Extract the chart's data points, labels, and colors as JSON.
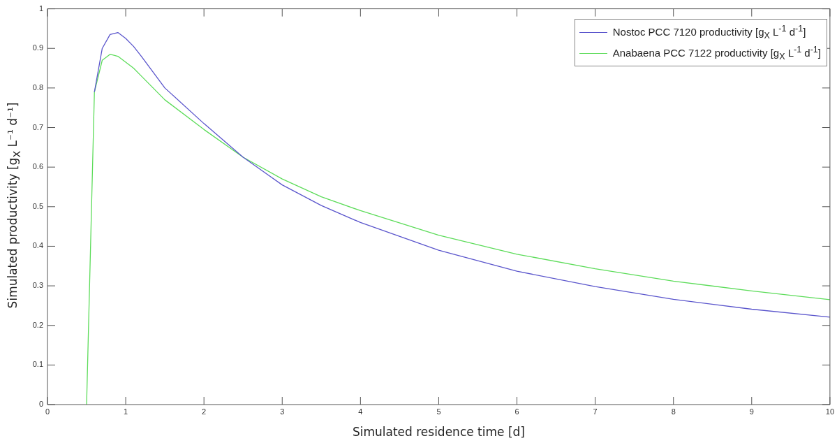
{
  "chart_data": {
    "type": "line",
    "xlabel": "Simulated residence time [d]",
    "ylabel": "Simulated productivity [g$_{X}$ L⁻¹ d⁻¹]",
    "xlim": [
      0,
      10
    ],
    "xticks": [
      0,
      1,
      2,
      3,
      4,
      5,
      6,
      7,
      8,
      9,
      10
    ],
    "ylim": [
      0,
      1
    ],
    "yticks": [
      0,
      0.1,
      0.2,
      0.3,
      0.4,
      0.5,
      0.6,
      0.7,
      0.8,
      0.9,
      1
    ],
    "grid": false,
    "legend": "top right",
    "marker": "none",
    "line_style": "solid",
    "series": [
      {
        "name": "Nostoc PCC 7120 productivity [g$_{X}$ L$^{-1}$ d$^{-1}$]",
        "color": "#5a55cc",
        "x": [
          0.6,
          0.7,
          0.8,
          0.9,
          1.0,
          1.1,
          1.2,
          1.5,
          2,
          2.5,
          3,
          3.5,
          4,
          5,
          6,
          7,
          8,
          9,
          10
        ],
        "values": [
          0.79,
          0.9,
          0.935,
          0.94,
          0.925,
          0.905,
          0.88,
          0.8,
          0.71,
          0.625,
          0.555,
          0.503,
          0.46,
          0.39,
          0.337,
          0.298,
          0.266,
          0.241,
          0.221
        ]
      },
      {
        "name": "Anabaena PCC 7122 productivity [g$_{X}$ L$^{-1}$ d$^{-1}$]",
        "color": "#5ddc5a",
        "x": [
          0.5,
          0.6,
          0.7,
          0.8,
          0.9,
          1.0,
          1.1,
          1.2,
          1.5,
          2,
          2.5,
          3,
          3.5,
          4,
          5,
          6,
          7,
          8,
          9,
          10
        ],
        "values": [
          0,
          0.79,
          0.87,
          0.885,
          0.88,
          0.865,
          0.85,
          0.83,
          0.77,
          0.695,
          0.625,
          0.57,
          0.525,
          0.49,
          0.428,
          0.38,
          0.343,
          0.312,
          0.287,
          0.265
        ]
      }
    ]
  }
}
